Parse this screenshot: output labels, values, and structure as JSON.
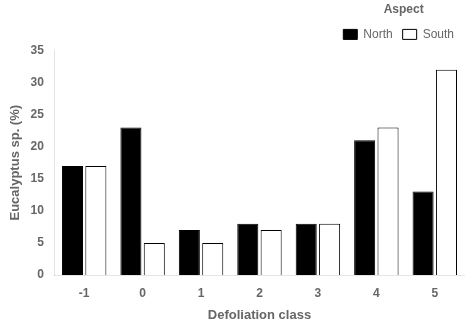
{
  "chart_data": {
    "type": "bar",
    "xlabel": "Defoliation class",
    "ylabel": "Eucalyptus sp. (%)",
    "categories": [
      "-1",
      "0",
      "1",
      "2",
      "3",
      "4",
      "5"
    ],
    "series": [
      {
        "name": "North",
        "color": "#000000",
        "values": [
          17,
          23,
          7,
          8,
          8,
          21,
          13
        ]
      },
      {
        "name": "South",
        "color": "#ffffff",
        "values": [
          17,
          5,
          5,
          7,
          8,
          23,
          32
        ]
      }
    ],
    "ylim": [
      0,
      35
    ],
    "yticks": [
      0,
      5,
      10,
      15,
      20,
      25,
      30,
      35
    ],
    "legend_title": "Aspect",
    "legend": "upper right",
    "grid": false
  }
}
